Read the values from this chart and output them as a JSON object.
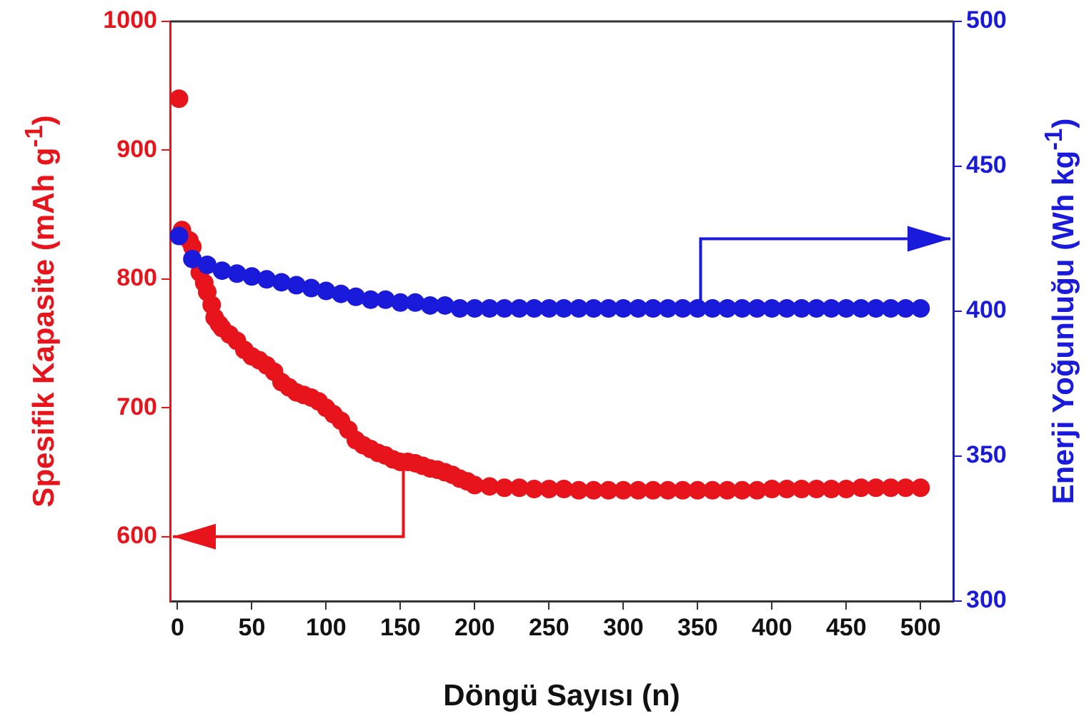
{
  "chart_data": {
    "type": "scatter",
    "xlabel": "Döngü Sayısı (n)",
    "ylabel": "Spesifik Kapasite (mAh g$^{-1}$)",
    "y2label": "Enerji Yoğunluğu (Wh kg$^{-1}$)",
    "xlim": [
      -5,
      522
    ],
    "xticks": [
      0,
      50,
      100,
      150,
      200,
      250,
      300,
      350,
      400,
      450,
      500
    ],
    "ylim": [
      550,
      1000
    ],
    "yticks": [
      600,
      700,
      800,
      900,
      1000
    ],
    "y2lim": [
      300,
      500
    ],
    "y2ticks": [
      300,
      350,
      400,
      450,
      500
    ],
    "marker": "circle",
    "legend": false,
    "series": [
      {
        "color": "#e8141b",
        "x": [
          1,
          3,
          8,
          10,
          15,
          18,
          20,
          23,
          25,
          28,
          30,
          35,
          40,
          45,
          50,
          55,
          60,
          65,
          70,
          75,
          80,
          85,
          90,
          95,
          100,
          105,
          110,
          115,
          120,
          125,
          130,
          135,
          140,
          145,
          150,
          155,
          160,
          165,
          170,
          175,
          180,
          185,
          190,
          195,
          200,
          210,
          220,
          230,
          240,
          250,
          260,
          270,
          280,
          290,
          300,
          310,
          320,
          330,
          340,
          350,
          360,
          370,
          380,
          390,
          400,
          410,
          420,
          430,
          440,
          450,
          460,
          470,
          480,
          490,
          500
        ],
        "values": [
          940,
          838,
          830,
          825,
          805,
          797,
          790,
          780,
          770,
          765,
          762,
          757,
          752,
          745,
          740,
          737,
          733,
          728,
          720,
          716,
          712,
          710,
          708,
          705,
          700,
          695,
          690,
          683,
          675,
          671,
          668,
          665,
          663,
          660,
          658,
          658,
          657,
          655,
          653,
          652,
          650,
          648,
          645,
          643,
          640,
          639,
          638,
          638,
          637,
          637,
          637,
          636,
          636,
          636,
          636,
          636,
          636,
          636,
          636,
          636,
          636,
          636,
          636,
          636,
          637,
          637,
          637,
          637,
          637,
          637,
          638,
          638,
          638,
          638,
          638
        ]
      },
      {
        "color": "#1a1adb",
        "axis": "y2",
        "x": [
          1,
          10,
          20,
          30,
          40,
          50,
          60,
          70,
          80,
          90,
          100,
          110,
          120,
          130,
          140,
          150,
          160,
          170,
          180,
          190,
          200,
          210,
          220,
          230,
          240,
          250,
          260,
          270,
          280,
          290,
          300,
          310,
          320,
          330,
          340,
          350,
          360,
          370,
          380,
          390,
          400,
          410,
          420,
          430,
          440,
          450,
          460,
          470,
          480,
          490,
          500
        ],
        "values": [
          426,
          418,
          416,
          414,
          413,
          412,
          411,
          410,
          409,
          408,
          407,
          406,
          405,
          404,
          404,
          403,
          403,
          402,
          402,
          401,
          401,
          401,
          401,
          401,
          401,
          401,
          401,
          401,
          401,
          401,
          401,
          401,
          401,
          401,
          401,
          401,
          401,
          401,
          401,
          401,
          401,
          401,
          401,
          401,
          401,
          401,
          401,
          401,
          401,
          401,
          401
        ]
      }
    ]
  }
}
